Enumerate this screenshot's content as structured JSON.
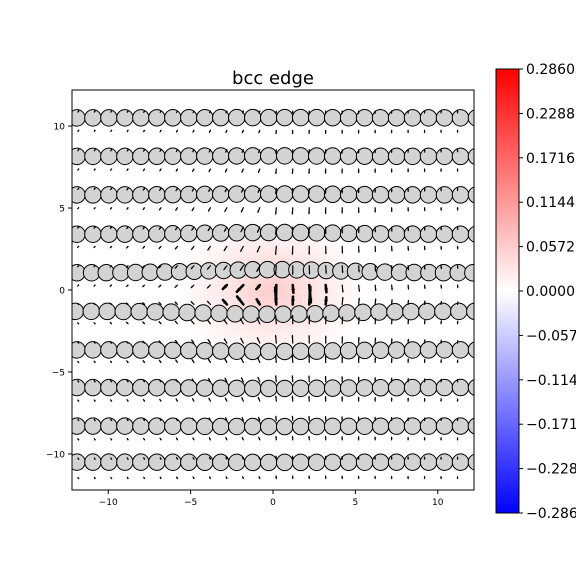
{
  "chart_data": {
    "type": "scatter",
    "title": "bcc edge",
    "xlabel": "",
    "ylabel": "",
    "xlim": [
      -12.2,
      12.2
    ],
    "ylim": [
      -12.2,
      12.2
    ],
    "xticks": [
      -10,
      -5,
      0,
      5,
      10
    ],
    "yticks": [
      -10,
      -5,
      0,
      5,
      10
    ],
    "xtick_labels": [
      "−10",
      "−5",
      "0",
      "5",
      "10"
    ],
    "ytick_labels": [
      "−10",
      "−5",
      "0",
      "5",
      "10"
    ],
    "grid": false,
    "colorbar": {
      "min": -0.286,
      "max": 0.286,
      "colormap": "bwr",
      "low_color": "#0000ff",
      "mid_color": "#ffffff",
      "high_color": "#ff0000",
      "ticks": [
        0.286,
        0.2288,
        0.1716,
        0.1144,
        0.0572,
        0.0,
        -0.0572,
        -0.1144,
        -0.1716,
        -0.2288,
        -0.286
      ],
      "tick_labels": [
        "0.2860",
        "0.2288",
        "0.1716",
        "0.1144",
        "0.0572",
        "0.0000",
        "−0.0572",
        "−0.1144",
        "−0.1716",
        "−0.2288",
        "−0.2860"
      ]
    },
    "atom_rows": [
      {
        "y": 10.5,
        "x_start": -11.9,
        "spacing": 0.97
      },
      {
        "y": 8.15,
        "x_start": -11.9,
        "spacing": 0.97
      },
      {
        "y": 5.8,
        "x_start": -11.9,
        "spacing": 0.97
      },
      {
        "y": 3.4,
        "x_start": -11.9,
        "spacing": 0.97
      },
      {
        "y": 1.05,
        "x_start": -11.9,
        "spacing": 0.89
      },
      {
        "y": -1.3,
        "x_start": -12.0,
        "spacing": 0.97
      },
      {
        "y": -3.65,
        "x_start": -11.9,
        "spacing": 0.97
      },
      {
        "y": -5.95,
        "x_start": -11.9,
        "spacing": 0.97
      },
      {
        "y": -8.3,
        "x_start": -11.9,
        "spacing": 0.97
      },
      {
        "y": -10.5,
        "x_start": -11.9,
        "spacing": 0.97
      }
    ],
    "atom_radius": 0.5,
    "atom_color": "#d3d3d3",
    "displacement_field": {
      "core_x": 0.0,
      "core_y": 0.0,
      "max_strain": 0.08
    }
  }
}
